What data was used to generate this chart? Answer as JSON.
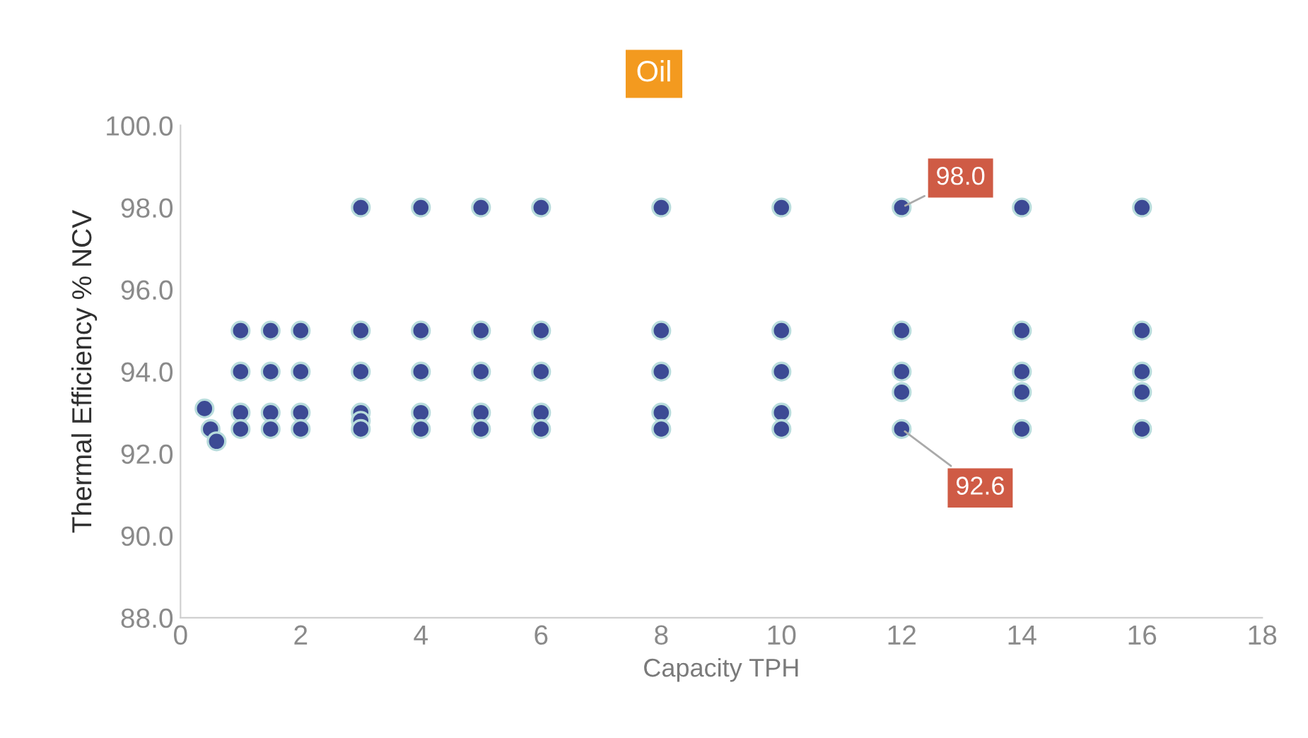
{
  "chart_data": {
    "type": "scatter",
    "title": "Oil",
    "xlabel": "Capacity TPH",
    "ylabel": "Thermal Efficiency % NCV",
    "series": [
      {
        "color": "#3c4a94",
        "x": [
          0.4,
          0.5,
          0.6,
          1,
          1,
          1,
          1,
          1.5,
          1.5,
          1.5,
          1.5,
          2,
          2,
          2,
          2,
          3,
          3,
          3,
          3,
          3,
          3,
          4,
          4,
          4,
          4,
          4,
          5,
          5,
          5,
          5,
          5,
          6,
          6,
          6,
          6,
          6,
          8,
          8,
          8,
          8,
          8,
          10,
          10,
          10,
          10,
          10,
          12,
          12,
          12,
          12,
          12,
          14,
          14,
          14,
          14,
          14,
          16,
          16,
          16,
          16,
          16
        ],
        "values": [
          93.1,
          92.6,
          92.3,
          95,
          94,
          93,
          92.6,
          95,
          94,
          93,
          92.6,
          95,
          94,
          93,
          92.6,
          98,
          95,
          94,
          93,
          92.8,
          92.6,
          98,
          95,
          94,
          93,
          92.6,
          98,
          95,
          94,
          93,
          92.6,
          98,
          95,
          94,
          93,
          92.6,
          98,
          95,
          94,
          93,
          92.6,
          98,
          95,
          94,
          93,
          92.6,
          98,
          95,
          94,
          93.5,
          92.6,
          98,
          95,
          94,
          93.5,
          92.6,
          98,
          95,
          94,
          93.5,
          92.6
        ]
      }
    ],
    "annotations": [
      {
        "text": "98.0",
        "x": 12,
        "y": 98
      },
      {
        "text": "92.6",
        "x": 12,
        "y": 92.6
      }
    ],
    "xlim": [
      0,
      18
    ],
    "xticks": [
      0,
      2,
      4,
      6,
      8,
      10,
      12,
      14,
      16,
      18
    ],
    "ylim": [
      88,
      100
    ],
    "yticks": [
      {
        "value": 88,
        "label": "88.0"
      },
      {
        "value": 90,
        "label": "90.0"
      },
      {
        "value": 92,
        "label": "92.0"
      },
      {
        "value": 94,
        "label": "94.0"
      },
      {
        "value": 96,
        "label": "96.0"
      },
      {
        "value": 98,
        "label": "98.0"
      },
      {
        "value": 100,
        "label": "100.0"
      }
    ],
    "grid": false,
    "legend": false,
    "marker": "circle"
  }
}
